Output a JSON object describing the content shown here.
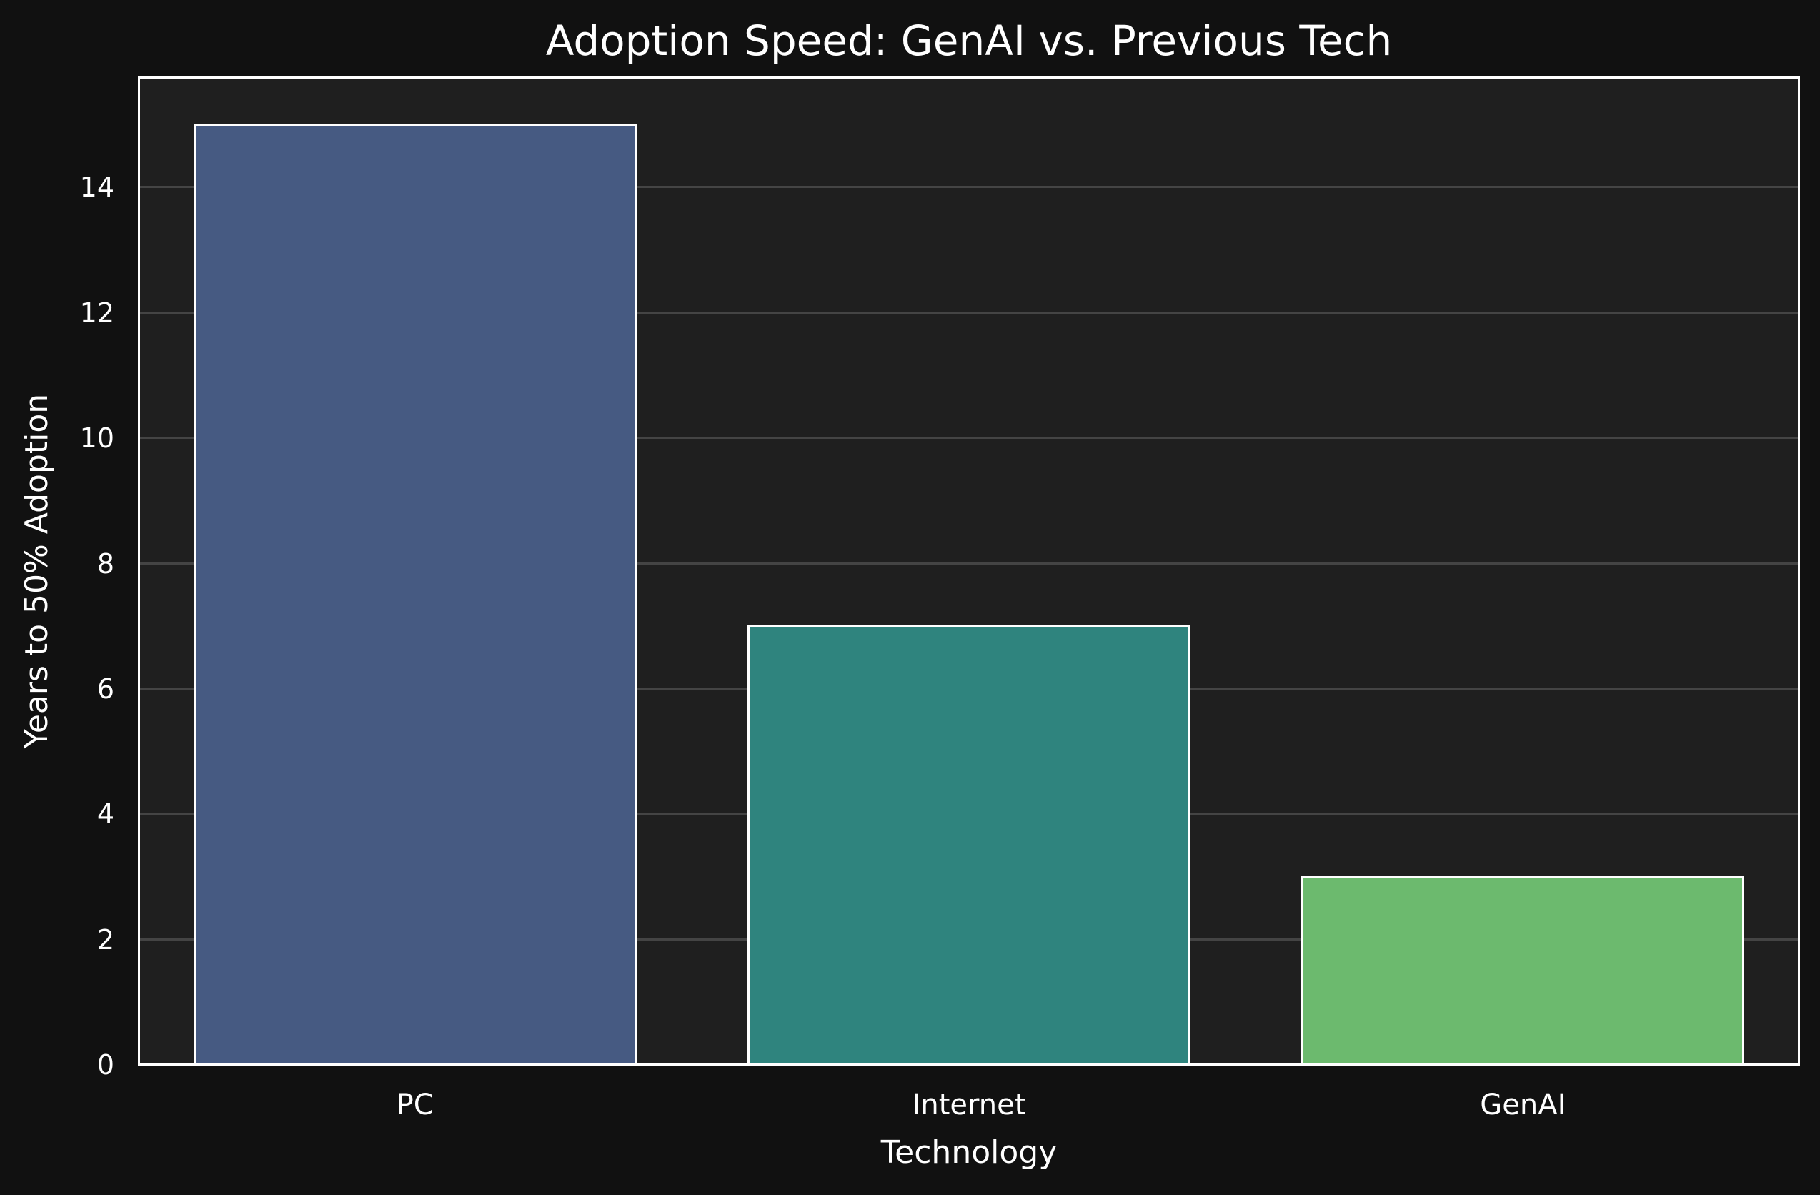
{
  "chart_data": {
    "type": "bar",
    "title": "Adoption Speed: GenAI vs. Previous Tech",
    "xlabel": "Technology",
    "ylabel": "Years to 50% Adoption",
    "categories": [
      "PC",
      "Internet",
      "GenAI"
    ],
    "values": [
      15,
      7,
      3
    ],
    "colors": [
      "#465a82",
      "#2f847e",
      "#6cba6e"
    ],
    "ylim": [
      0,
      15.75
    ],
    "yticks": [
      0,
      2,
      4,
      6,
      8,
      10,
      12,
      14
    ],
    "grid": "y",
    "legend": "none"
  },
  "theme": {
    "background": "#111111",
    "axes_background": "#1f1f1f",
    "grid_color": "#444444",
    "text_color": "#ffffff"
  }
}
